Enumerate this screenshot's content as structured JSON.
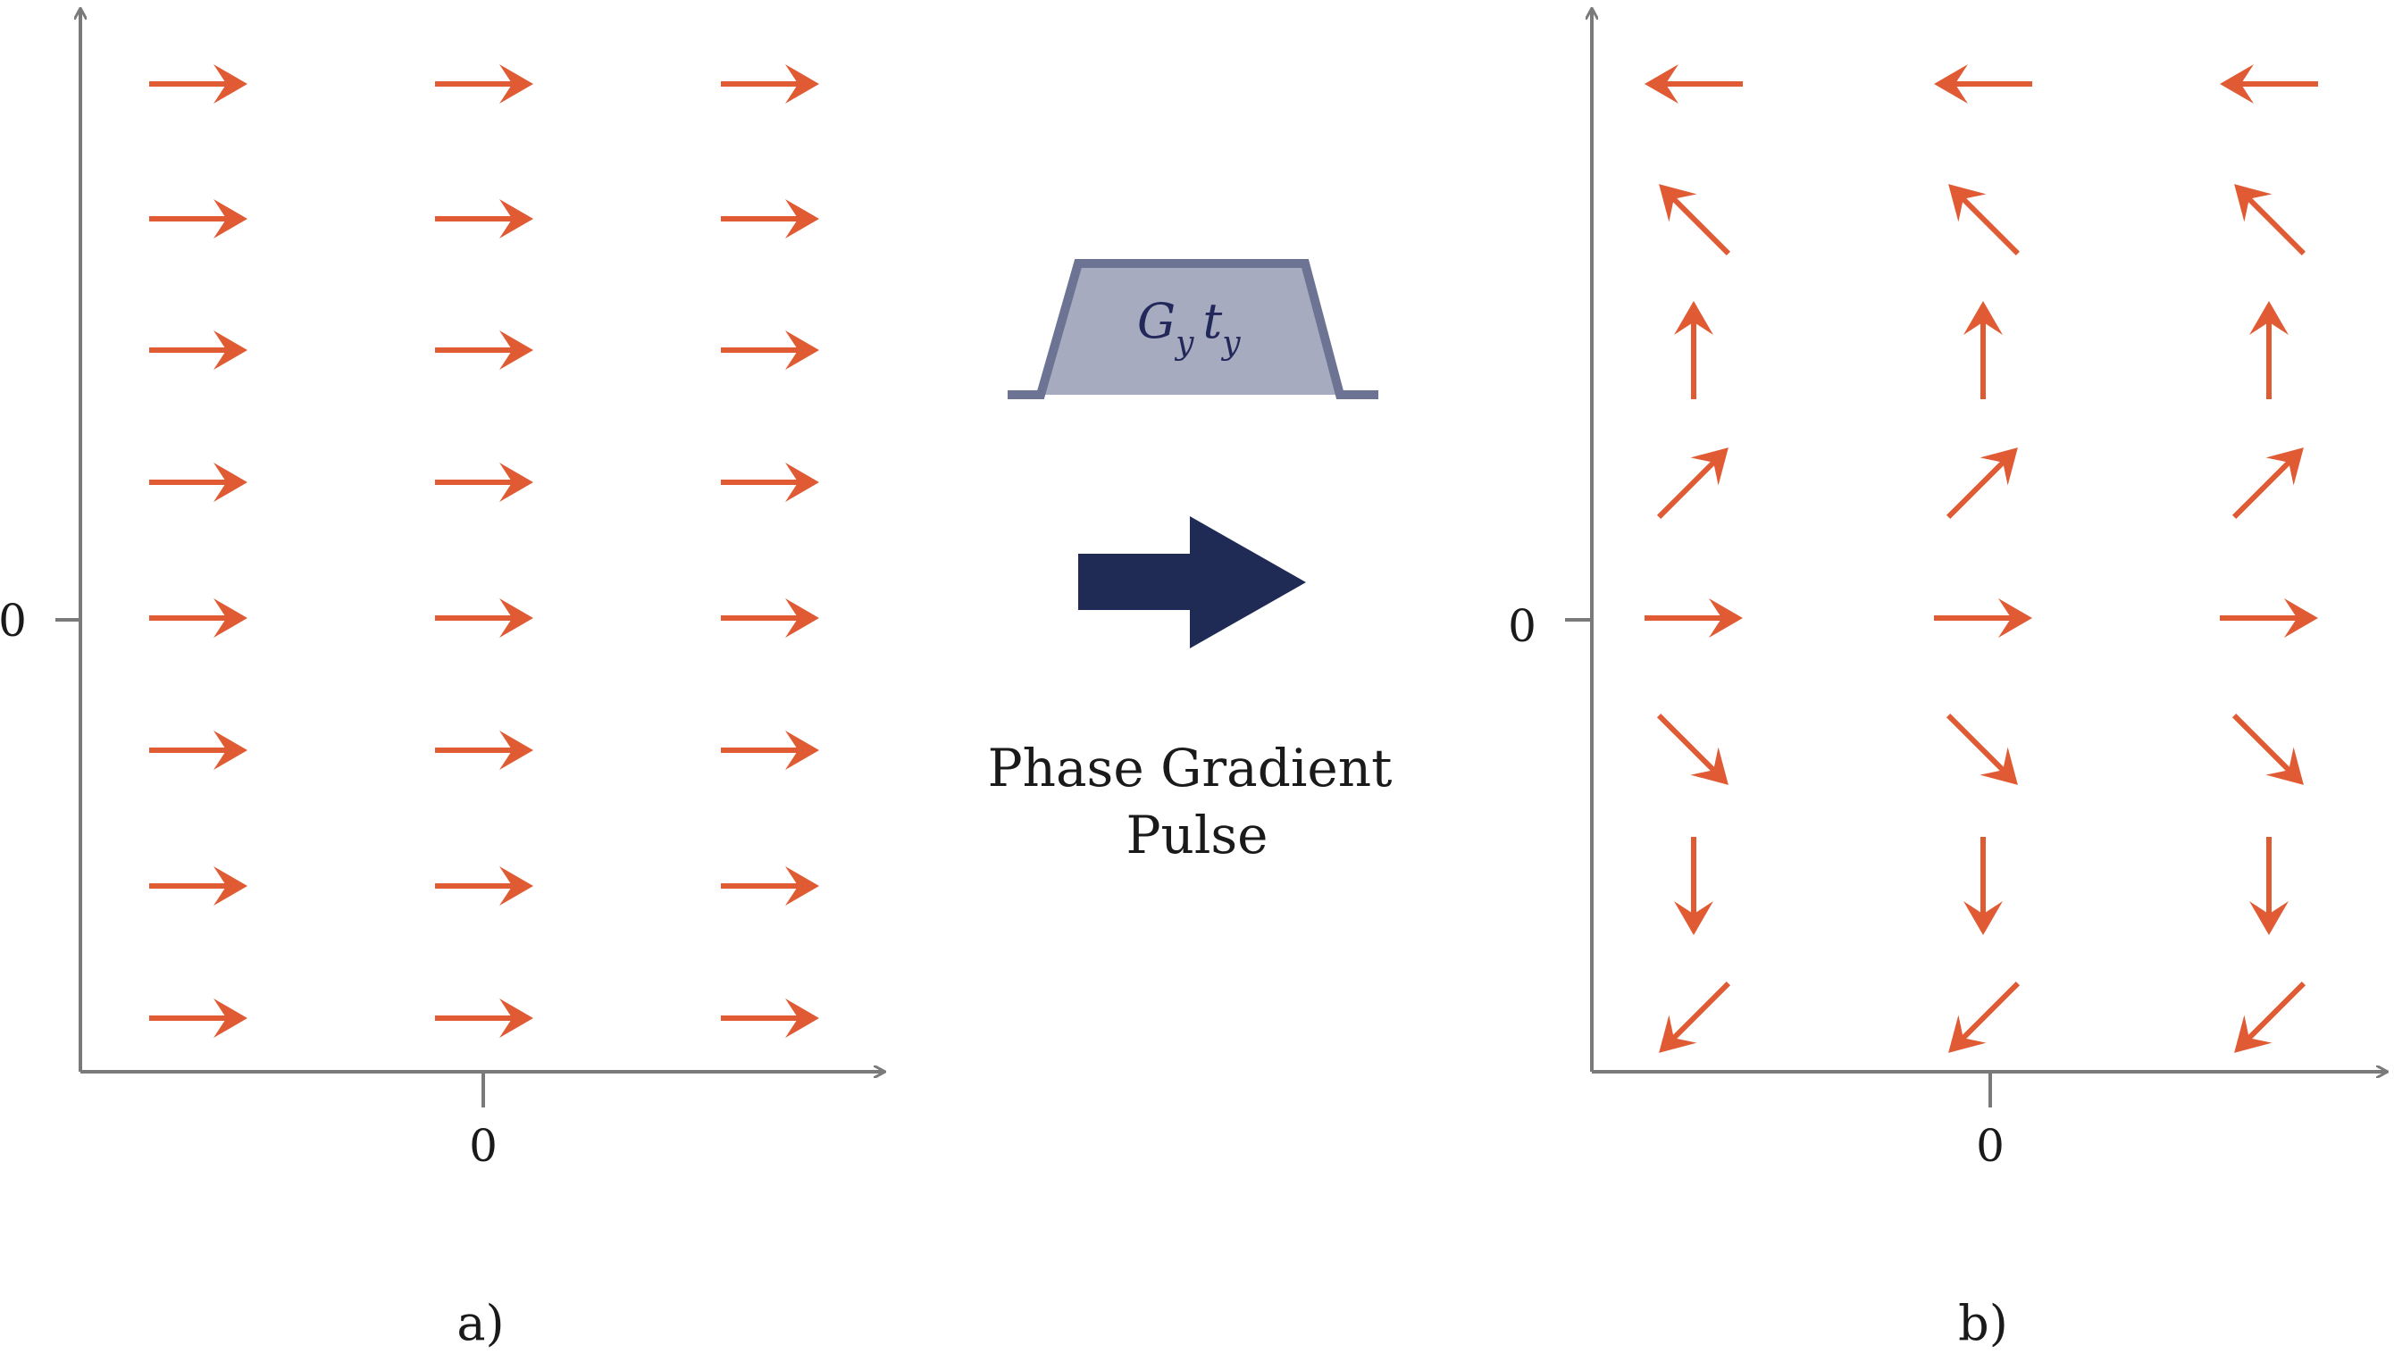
{
  "colors": {
    "axis": "#7a7a7a",
    "vector": "#e05a33",
    "pulse_fill": "#a6abbf",
    "pulse_edge": "#6d7393",
    "big_arrow": "#1f2a55",
    "text": "#1a1a1a"
  },
  "panels": [
    {
      "id": "a",
      "label": "a)",
      "y_tick_label": "0",
      "x_tick_label": "0",
      "columns": 3,
      "rows": 8,
      "row_angles_deg": [
        0,
        0,
        0,
        0,
        0,
        0,
        0,
        0
      ]
    },
    {
      "id": "b",
      "label": "b)",
      "y_tick_label": "0",
      "x_tick_label": "0",
      "columns": 3,
      "rows": 8,
      "row_angles_deg": [
        180,
        135,
        90,
        45,
        0,
        -45,
        -90,
        -135
      ]
    }
  ],
  "pulse": {
    "label_main": "G",
    "label_sub1": "y",
    "label_t": "t",
    "label_sub2": "y"
  },
  "caption": {
    "line1": "Phase Gradient",
    "line2": "Pulse"
  }
}
